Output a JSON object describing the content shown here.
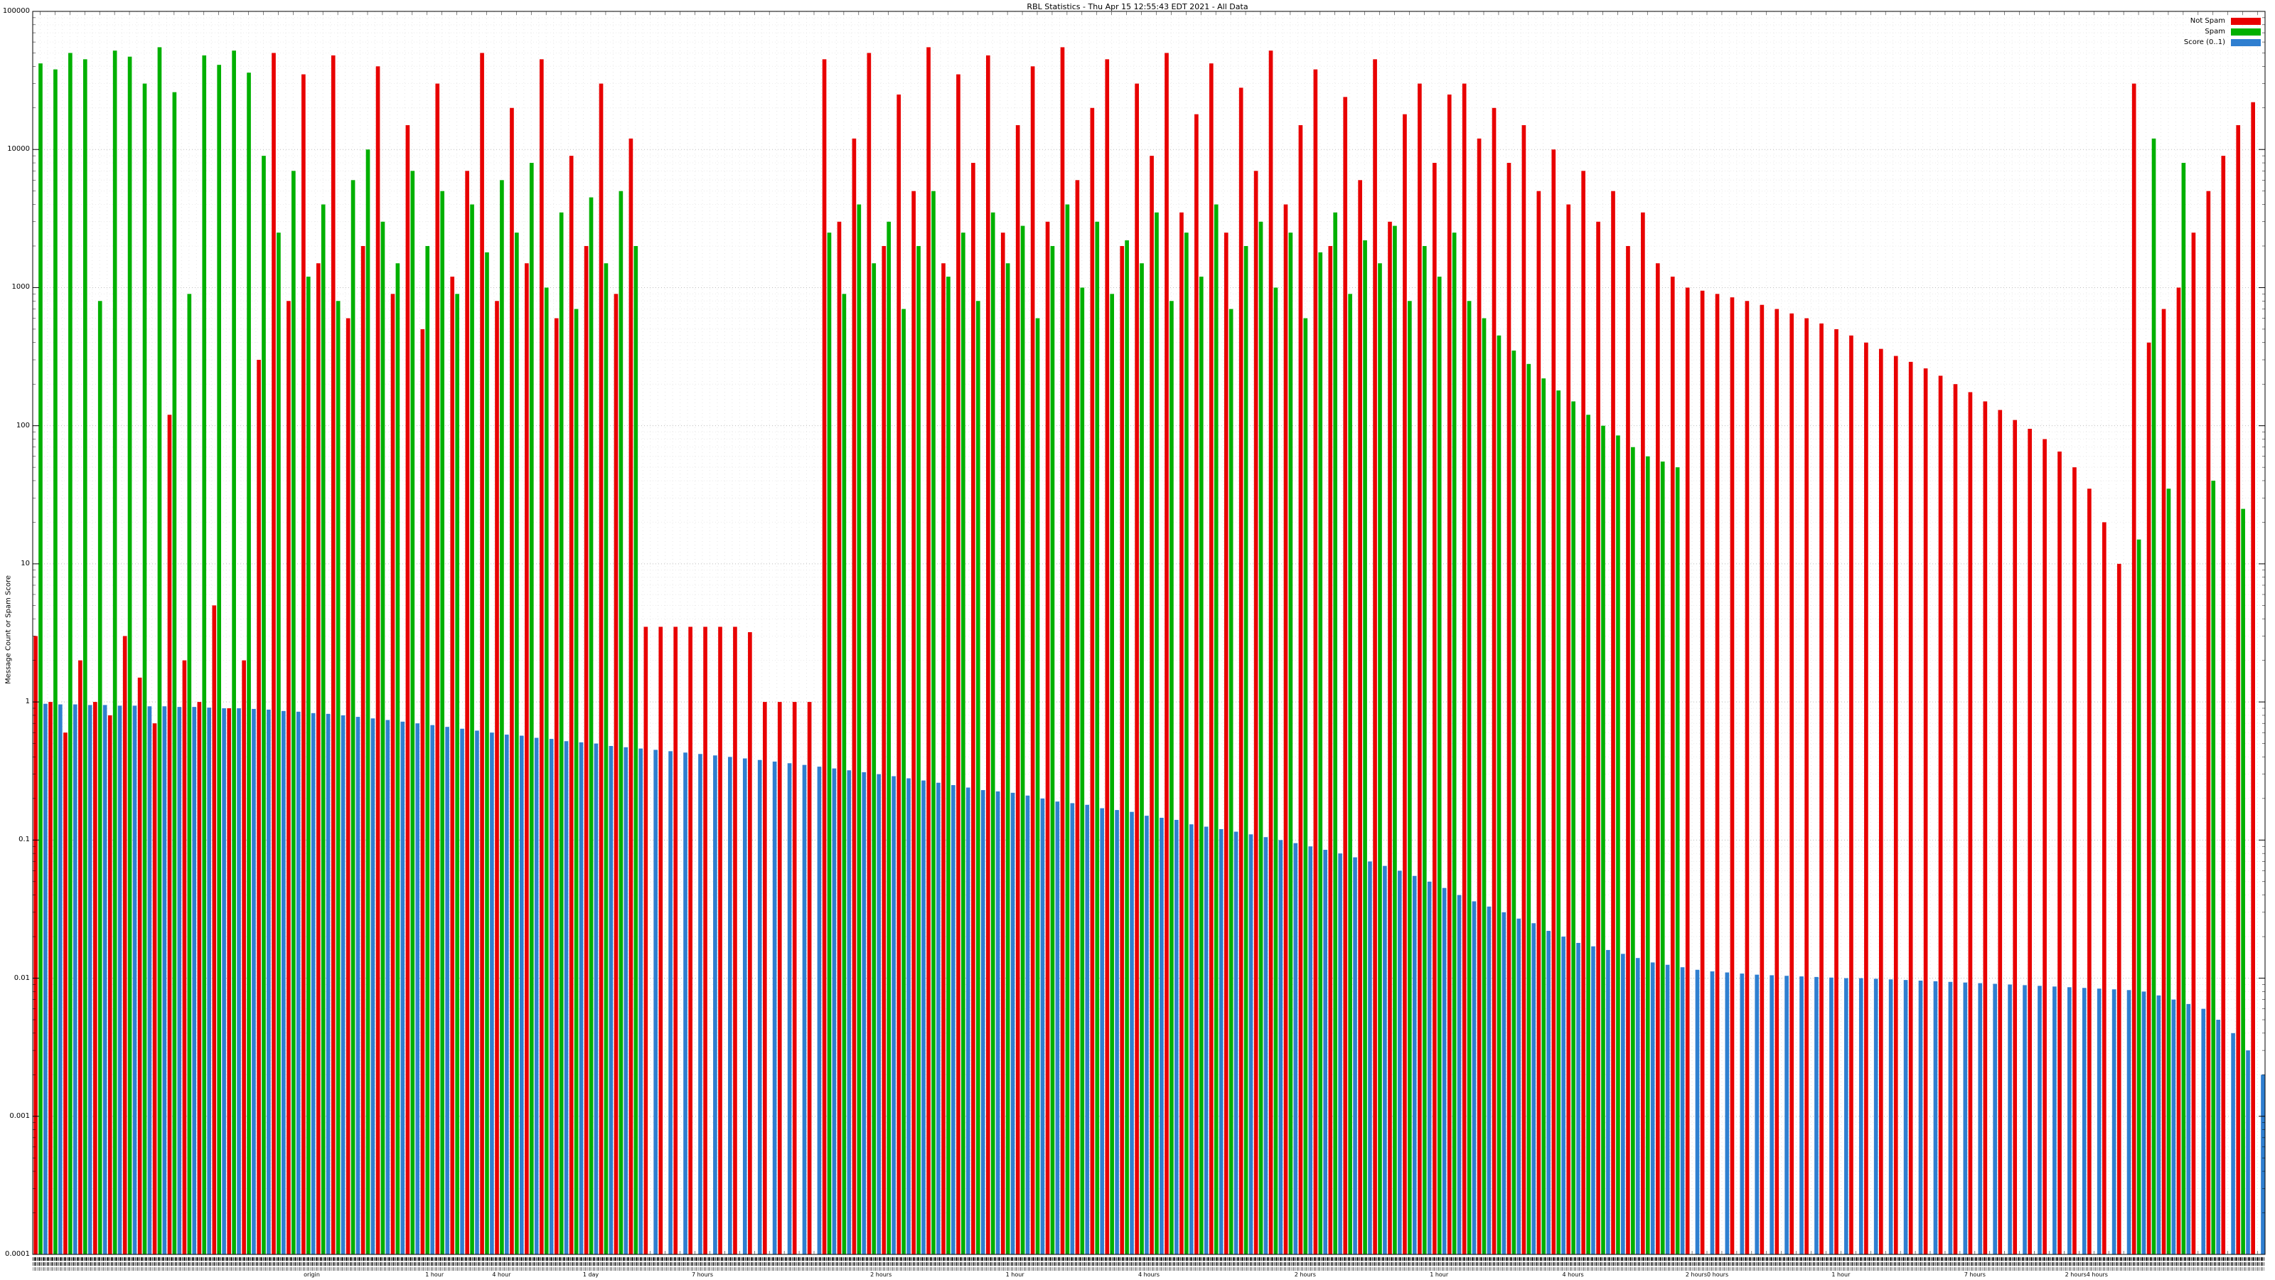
{
  "title": "RBL Statistics - Thu Apr 15 12:55:43 EDT 2021 - All Data",
  "y_axis": {
    "label": "Message Count or Spam Score",
    "scale": "log",
    "ticks": [
      "100000",
      "10000",
      "1000",
      "100",
      "10",
      "1",
      "0.1",
      "0.01",
      "0.001",
      "0.0001"
    ],
    "min": 0.0001,
    "max": 100000
  },
  "x_axis": {
    "labels_legible": false,
    "note": "hundreds of overlapping category labels along the x-axis, illegible at this scale",
    "readable_fragments": [
      {
        "text": "origin",
        "x_pct": 12.5
      },
      {
        "text": "1 hour",
        "x_pct": 18
      },
      {
        "text": "4 hour",
        "x_pct": 21
      },
      {
        "text": "1 day",
        "x_pct": 25
      },
      {
        "text": "7 hours",
        "x_pct": 30
      },
      {
        "text": "2 hours",
        "x_pct": 38
      },
      {
        "text": "1 hour",
        "x_pct": 44
      },
      {
        "text": "4 hours",
        "x_pct": 50
      },
      {
        "text": "2 hours",
        "x_pct": 57
      },
      {
        "text": "1 hour",
        "x_pct": 63
      },
      {
        "text": "4 hours",
        "x_pct": 69
      },
      {
        "text": "2 hours0 hours",
        "x_pct": 75
      },
      {
        "text": "1 hour",
        "x_pct": 81
      },
      {
        "text": "7 hours",
        "x_pct": 87
      },
      {
        "text": "2 hours4 hours",
        "x_pct": 92
      }
    ]
  },
  "legend": {
    "position": "top-right",
    "items": [
      {
        "label": "Not Spam",
        "color": "#e80000"
      },
      {
        "label": "Spam",
        "color": "#00b000"
      },
      {
        "label": "Score (0..1)",
        "color": "#2f7fd0"
      }
    ]
  },
  "chart_data": {
    "type": "bar",
    "scale": "log",
    "title": "RBL Statistics - Thu Apr 15 12:55:43 EDT 2021 - All Data",
    "ylabel": "Message Count or Spam Score",
    "ylim": [
      0.0001,
      100000
    ],
    "grid": true,
    "legend_position": "top-right",
    "categories_count": 150,
    "series": [
      {
        "name": "Not Spam",
        "color": "#e80000",
        "values": [
          3,
          1,
          0.6,
          2,
          1,
          0.8,
          3,
          1.5,
          0.7,
          120,
          2,
          1,
          5,
          0.9,
          2,
          300,
          50000,
          800,
          35000,
          1500,
          48000,
          600,
          2000,
          40000,
          900,
          15000,
          500,
          30000,
          1200,
          7000,
          50000,
          800,
          20000,
          1500,
          45000,
          600,
          9000,
          2000,
          30000,
          900,
          12000,
          3.5,
          3.5,
          3.5,
          3.5,
          3.5,
          3.5,
          3.5,
          3.2,
          1,
          1,
          1,
          1,
          45000,
          3000,
          12000,
          50000,
          2000,
          25000,
          5000,
          55000,
          1500,
          35000,
          8000,
          48000,
          2500,
          15000,
          40000,
          3000,
          55000,
          6000,
          20000,
          45000,
          2000,
          30000,
          9000,
          50000,
          3500,
          18000,
          42000,
          2500,
          28000,
          7000,
          52000,
          4000,
          15000,
          38000,
          2000,
          24000,
          6000,
          45000,
          3000,
          18000,
          30000,
          8000,
          25000,
          30000,
          12000,
          20000,
          8000,
          15000,
          5000,
          10000,
          4000,
          7000,
          3000,
          5000,
          2000,
          3500,
          1500,
          1200,
          1000,
          950,
          900,
          850,
          800,
          750,
          700,
          650,
          600,
          550,
          500,
          450,
          400,
          360,
          320,
          290,
          260,
          230,
          200,
          175,
          150,
          130,
          110,
          95,
          80,
          65,
          50,
          35,
          20,
          10,
          30000,
          400,
          700,
          1000,
          2500,
          5000,
          9000,
          15000,
          22000
        ]
      },
      {
        "name": "Spam",
        "color": "#00b000",
        "values": [
          42000,
          38000,
          50000,
          45000,
          800,
          52000,
          47000,
          30000,
          55000,
          26000,
          900,
          48000,
          41000,
          52000,
          36000,
          9000,
          2500,
          7000,
          1200,
          4000,
          800,
          6000,
          10000,
          3000,
          1500,
          7000,
          2000,
          5000,
          900,
          4000,
          1800,
          6000,
          2500,
          8000,
          1000,
          3500,
          700,
          4500,
          1500,
          5000,
          2000,
          0,
          0,
          0,
          0,
          0,
          0,
          0,
          0,
          0,
          0,
          0,
          0,
          2500,
          900,
          4000,
          1500,
          3000,
          700,
          2000,
          5000,
          1200,
          2500,
          800,
          3500,
          1500,
          2800,
          600,
          2000,
          4000,
          1000,
          3000,
          900,
          2200,
          1500,
          3500,
          800,
          2500,
          1200,
          4000,
          700,
          2000,
          3000,
          1000,
          2500,
          600,
          1800,
          3500,
          900,
          2200,
          1500,
          2800,
          800,
          2000,
          1200,
          2500,
          800,
          600,
          450,
          350,
          280,
          220,
          180,
          150,
          120,
          100,
          85,
          70,
          60,
          55,
          50,
          0,
          0,
          0,
          0,
          0,
          0,
          0,
          0,
          0,
          0,
          0,
          0,
          0,
          0,
          0,
          0,
          0,
          0,
          0,
          0,
          0,
          0,
          0,
          0,
          0,
          0,
          0,
          0,
          0,
          0,
          15,
          12000,
          35,
          8000,
          0,
          40,
          0,
          25,
          0
        ]
      },
      {
        "name": "Score (0..1)",
        "color": "#2f7fd0",
        "values": [
          0.97,
          0.96,
          0.96,
          0.95,
          0.95,
          0.94,
          0.94,
          0.93,
          0.93,
          0.92,
          0.92,
          0.91,
          0.9,
          0.9,
          0.89,
          0.88,
          0.86,
          0.85,
          0.83,
          0.82,
          0.8,
          0.78,
          0.76,
          0.74,
          0.72,
          0.7,
          0.68,
          0.66,
          0.64,
          0.62,
          0.6,
          0.58,
          0.57,
          0.55,
          0.54,
          0.52,
          0.51,
          0.5,
          0.48,
          0.47,
          0.46,
          0.45,
          0.44,
          0.43,
          0.42,
          0.41,
          0.4,
          0.39,
          0.38,
          0.37,
          0.36,
          0.35,
          0.34,
          0.33,
          0.32,
          0.31,
          0.3,
          0.29,
          0.28,
          0.27,
          0.26,
          0.25,
          0.24,
          0.23,
          0.225,
          0.22,
          0.21,
          0.2,
          0.19,
          0.185,
          0.18,
          0.17,
          0.165,
          0.16,
          0.15,
          0.145,
          0.14,
          0.13,
          0.125,
          0.12,
          0.115,
          0.11,
          0.105,
          0.1,
          0.095,
          0.09,
          0.085,
          0.08,
          0.075,
          0.07,
          0.065,
          0.06,
          0.055,
          0.05,
          0.045,
          0.04,
          0.036,
          0.033,
          0.03,
          0.027,
          0.025,
          0.022,
          0.02,
          0.018,
          0.017,
          0.016,
          0.015,
          0.014,
          0.013,
          0.0125,
          0.012,
          0.0115,
          0.0112,
          0.011,
          0.0108,
          0.0106,
          0.0105,
          0.0104,
          0.0103,
          0.0102,
          0.0101,
          0.01,
          0.01,
          0.0099,
          0.0098,
          0.0097,
          0.0096,
          0.0095,
          0.0094,
          0.0093,
          0.0092,
          0.0091,
          0.009,
          0.0089,
          0.0088,
          0.0087,
          0.0086,
          0.0085,
          0.0084,
          0.0083,
          0.0082,
          0.008,
          0.0075,
          0.007,
          0.0065,
          0.006,
          0.005,
          0.004,
          0.003,
          0.002
        ]
      }
    ]
  }
}
